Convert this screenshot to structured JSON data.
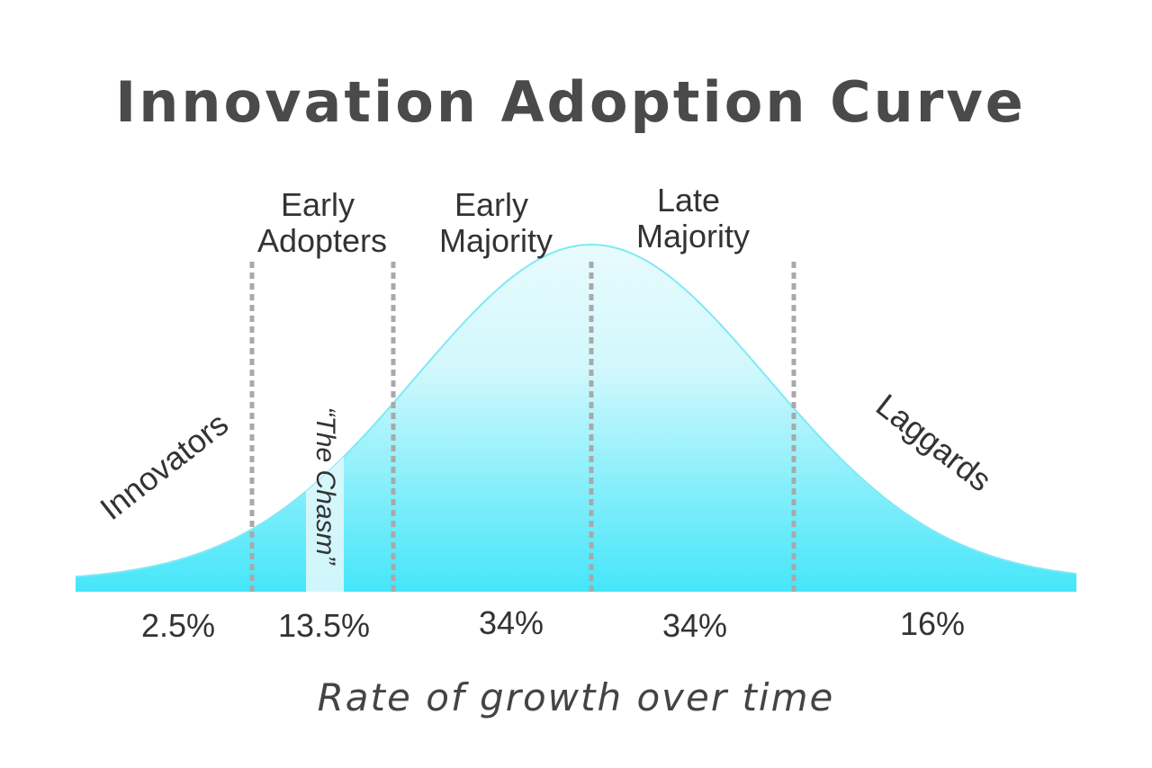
{
  "title": "Innovation Adoption Curve",
  "x_axis_label": "Rate of growth over time",
  "chasm_label": "“The Chasm”",
  "colors": {
    "curve_fill_top": "#e8fbfd",
    "curve_fill_bottom": "#45e6fa",
    "curve_stroke": "#7fe9f6",
    "chasm_fill": "#dff7fb",
    "divider": "#a9a9a9",
    "title": "#4a4a4a",
    "text": "#333333"
  },
  "segments": [
    {
      "name": "Innovators",
      "share": "2.5%"
    },
    {
      "name": "Early Adopters",
      "name_lines": [
        "Early",
        "Adopters"
      ],
      "share": "13.5%"
    },
    {
      "name": "Early Majority",
      "name_lines": [
        "Early",
        "Majority"
      ],
      "share": "34%"
    },
    {
      "name": "Late Majority",
      "name_lines": [
        "Late",
        "Majority"
      ],
      "share": "34%"
    },
    {
      "name": "Laggards",
      "share": "16%"
    }
  ],
  "chart_data": {
    "type": "area",
    "title": "Innovation Adoption Curve",
    "xlabel": "Rate of growth over time",
    "ylabel": "",
    "distribution": "normal",
    "category_boundaries_in_sd": [
      -2,
      -1,
      0,
      1
    ],
    "categories": [
      "Innovators",
      "Early Adopters",
      "Early Majority",
      "Late Majority",
      "Laggards"
    ],
    "values": [
      2.5,
      13.5,
      34,
      34,
      16
    ],
    "unit": "%",
    "annotation": "“The Chasm”"
  }
}
